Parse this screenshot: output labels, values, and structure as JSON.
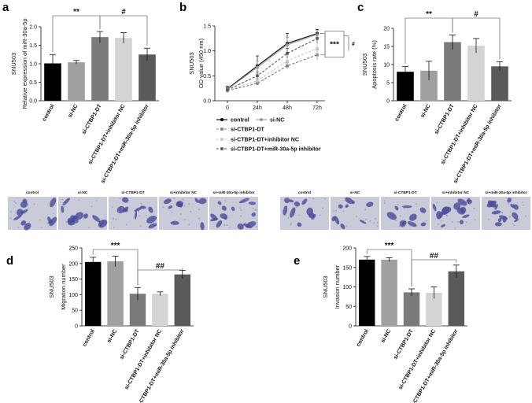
{
  "panel_letters": [
    "a",
    "b",
    "c",
    "d",
    "e"
  ],
  "colors": {
    "control": "#000000",
    "si_nc": "#a0a0a0",
    "si_ctbp1_dt": "#7a7a7a",
    "si_ctbp1_dt_inhibitor_nc": "#d4d4d4",
    "si_ctbp1_dt_mir_inhibitor": "#5a5a5a",
    "micrograph_bg": "#c9ccd8",
    "cell_stain": "#4a4a9a"
  },
  "chart_data": [
    {
      "id": "a",
      "type": "bar",
      "cell_line": "SNU503",
      "ylabel": "Relative expression of miR-30a-5p",
      "ylim": [
        0,
        2.0
      ],
      "yticks": [
        "0.0",
        "0.5",
        "1.0",
        "1.5",
        "2.0"
      ],
      "categories": [
        "control",
        "si-NC",
        "si-CTBP1-DT",
        "si-CTBP1-DT+inhibitor NC",
        "si-CTBP1-DT+miR-30a-5p inhibitor"
      ],
      "values": [
        1.01,
        1.04,
        1.72,
        1.7,
        1.25
      ],
      "errors": [
        0.24,
        0.05,
        0.15,
        0.14,
        0.17
      ],
      "annotations": [
        {
          "text": "**",
          "from": 0,
          "to": 2
        },
        {
          "text": "#",
          "from": 2,
          "to": 4
        }
      ]
    },
    {
      "id": "b",
      "type": "line",
      "cell_line": "SNU503",
      "ylabel": "OD value (450 nm)",
      "x": [
        "0",
        "24h",
        "48h",
        "72h"
      ],
      "ylim": [
        0,
        1.5
      ],
      "yticks": [
        "0.0",
        "0.5",
        "1.0",
        "1.5"
      ],
      "series": [
        {
          "name": "control",
          "values": [
            0.24,
            0.7,
            1.15,
            1.35
          ],
          "errors": [
            0.05,
            0.2,
            0.2,
            0.08
          ]
        },
        {
          "name": "si-NC",
          "values": [
            0.23,
            0.67,
            1.12,
            1.33
          ],
          "errors": [
            0.05,
            0.12,
            0.15,
            0.08
          ]
        },
        {
          "name": "si-CTBP1-DT",
          "values": [
            0.2,
            0.35,
            0.7,
            0.92
          ],
          "errors": [
            0.04,
            0.04,
            0.06,
            0.1
          ]
        },
        {
          "name": "si-CTBP1-DT+inhibitor NC",
          "values": [
            0.21,
            0.4,
            0.8,
            1.05
          ],
          "errors": [
            0.04,
            0.05,
            0.08,
            0.2
          ]
        },
        {
          "name": "si-CTBP1-DT+miR-30a-5p inhibitor",
          "values": [
            0.22,
            0.5,
            0.95,
            1.25
          ],
          "errors": [
            0.04,
            0.08,
            0.1,
            0.1
          ]
        }
      ],
      "annotations": [
        {
          "text": "***"
        },
        {
          "text": "#"
        }
      ]
    },
    {
      "id": "c",
      "type": "bar",
      "cell_line": "SNU503",
      "ylabel": "Apoptosis rate (%)",
      "ylim": [
        0,
        20
      ],
      "yticks": [
        "0",
        "5",
        "10",
        "15",
        "20"
      ],
      "categories": [
        "control",
        "si-NC",
        "si-CTBP1-DT",
        "si-CTBP1-DT+inhibitor NC",
        "si-CTBP1-DT+miR-30a-5p inhibitor"
      ],
      "values": [
        8.0,
        8.3,
        16.2,
        15.2,
        9.5
      ],
      "errors": [
        1.5,
        2.6,
        2.0,
        2.0,
        1.3
      ],
      "annotations": [
        {
          "text": "**",
          "from": 0,
          "to": 2
        },
        {
          "text": "#",
          "from": 2,
          "to": 4
        }
      ]
    },
    {
      "id": "d",
      "type": "bar",
      "cell_line": "SNU503",
      "ylabel": "Migration number",
      "ylim": [
        0,
        250
      ],
      "yticks": [
        "0",
        "50",
        "100",
        "150",
        "200",
        "250"
      ],
      "categories": [
        "control",
        "si-NC",
        "si-CTBP1-DT",
        "si-CTBP1-DT+inhibitor NC",
        "si-CTBP1-DT+miR-30a-5p inhibitor"
      ],
      "values": [
        205,
        207,
        103,
        103,
        165
      ],
      "errors": [
        15,
        17,
        20,
        6,
        13
      ],
      "annotations": [
        {
          "text": "***",
          "from": 0,
          "to": 2
        },
        {
          "text": "##",
          "from": 2,
          "to": 4
        }
      ]
    },
    {
      "id": "e",
      "type": "bar",
      "cell_line": "SNU503",
      "ylabel": "Invasion number",
      "ylim": [
        0,
        200
      ],
      "yticks": [
        "0",
        "50",
        "100",
        "150",
        "200"
      ],
      "categories": [
        "control",
        "si-NC",
        "si-CTBP1-DT",
        "si-CTBP1-DT+inhibitor NC",
        "si-CTBP1-DT+miR-30a-5p inhibitor"
      ],
      "values": [
        170,
        170,
        86,
        85,
        140
      ],
      "errors": [
        8,
        5,
        9,
        15,
        16
      ],
      "annotations": [
        {
          "text": "***",
          "from": 0,
          "to": 2
        },
        {
          "text": "##",
          "from": 2,
          "to": 4
        }
      ]
    }
  ],
  "micrographs": {
    "migration_labels": [
      "control",
      "si-NC",
      "si-CTBP1-DT",
      "si+inhibitor NC",
      "si+miR-30a-5p inhibitor"
    ],
    "invasion_labels": [
      "control",
      "si-NC",
      "si-CTBP1-DT",
      "si+inhibitor NC",
      "si+miR-30a-5p inhibitor"
    ]
  }
}
